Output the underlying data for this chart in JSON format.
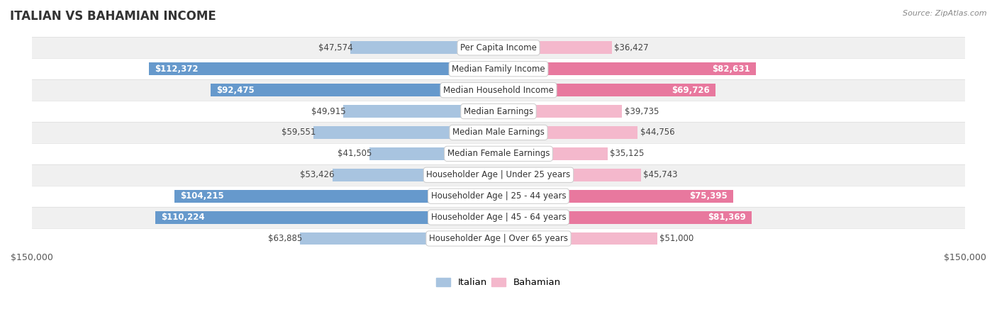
{
  "title": "ITALIAN VS BAHAMIAN INCOME",
  "source": "Source: ZipAtlas.com",
  "categories": [
    "Per Capita Income",
    "Median Family Income",
    "Median Household Income",
    "Median Earnings",
    "Median Male Earnings",
    "Median Female Earnings",
    "Householder Age | Under 25 years",
    "Householder Age | 25 - 44 years",
    "Householder Age | 45 - 64 years",
    "Householder Age | Over 65 years"
  ],
  "italian_values": [
    47574,
    112372,
    92475,
    49915,
    59551,
    41505,
    53426,
    104215,
    110224,
    63885
  ],
  "bahamian_values": [
    36427,
    82631,
    69726,
    39735,
    44756,
    35125,
    45743,
    75395,
    81369,
    51000
  ],
  "italian_labels": [
    "$47,574",
    "$112,372",
    "$92,475",
    "$49,915",
    "$59,551",
    "$41,505",
    "$53,426",
    "$104,215",
    "$110,224",
    "$63,885"
  ],
  "bahamian_labels": [
    "$36,427",
    "$82,631",
    "$69,726",
    "$39,735",
    "$44,756",
    "$35,125",
    "$45,743",
    "$75,395",
    "$81,369",
    "$51,000"
  ],
  "italian_inside": [
    false,
    true,
    true,
    false,
    false,
    false,
    false,
    true,
    true,
    false
  ],
  "bahamian_inside": [
    false,
    true,
    true,
    false,
    false,
    false,
    false,
    true,
    true,
    false
  ],
  "max_value": 150000,
  "italian_color_light": "#a8c4e0",
  "italian_color_dark": "#6699cc",
  "bahamian_color_light": "#f4b8cc",
  "bahamian_color_dark": "#e8789e",
  "row_bg_odd": "#f0f0f0",
  "row_bg_even": "#ffffff",
  "bar_height": 0.6,
  "legend_italian_color": "#a8c4e0",
  "legend_bahamian_color": "#f4b8cc",
  "title_fontsize": 12,
  "label_fontsize": 8.5,
  "cat_fontsize": 8.5
}
